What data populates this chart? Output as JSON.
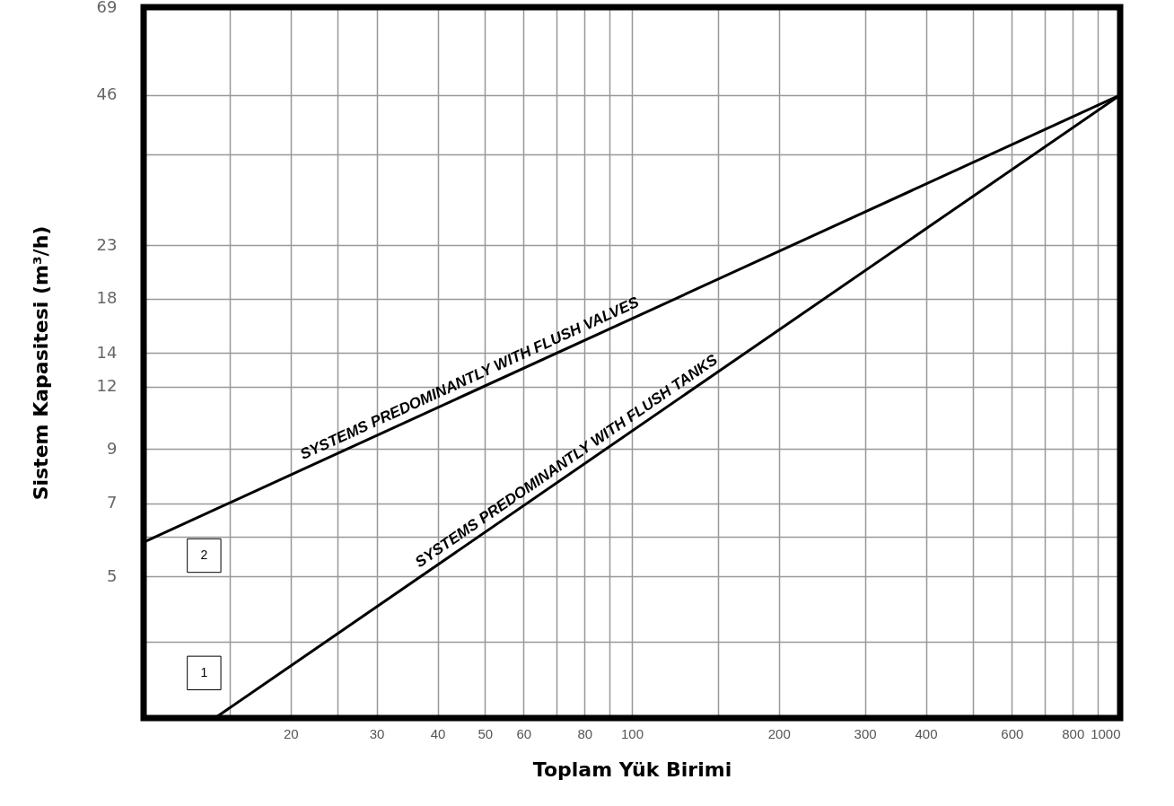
{
  "chart_data": {
    "type": "line",
    "xlabel": "Toplam Yük Birimi",
    "ylabel": "Sistem Kapasitesi (m³/h)",
    "log": "xy",
    "xlim": [
      10,
      1000
    ],
    "ylim": [
      2.6,
      69
    ],
    "xticks": [
      {
        "value": 15,
        "label": null
      },
      20,
      {
        "value": 25,
        "label": null
      },
      30,
      40,
      50,
      60,
      {
        "value": 70,
        "label": null
      },
      80,
      {
        "value": 90,
        "label": null
      },
      100,
      {
        "value": 150,
        "label": null
      },
      200,
      300,
      400,
      {
        "value": 500,
        "label": null
      },
      600,
      {
        "value": 700,
        "label": null
      },
      800,
      {
        "value": 900,
        "label": null
      },
      1000
    ],
    "yticks": [
      {
        "value": 3.7,
        "label": null
      },
      5,
      {
        "value": 6,
        "label": null
      },
      7,
      9,
      12,
      14,
      18,
      23,
      {
        "value": 35,
        "label": null
      },
      46,
      69
    ],
    "grid": true,
    "series": [
      {
        "color": "#000000",
        "x": [
          10,
          1000
        ],
        "values": [
          5.85,
          46
        ]
      },
      {
        "color": "#000000",
        "x": [
          14,
          1000
        ],
        "values": [
          2.6,
          46
        ]
      }
    ],
    "annotations": [
      {
        "text": "SYSTEMS PREDOMINANTLY WITH FLUSH VALVES",
        "x": 47.7,
        "y": 11.8
      },
      {
        "text": "SYSTEMS PREDOMINANTLY WITH FLUSH TANKS",
        "x": 76,
        "y": 8.1
      },
      {
        "text": "2",
        "x": 13.3,
        "y": 5.5
      },
      {
        "text": "1",
        "x": 13.3,
        "y": 3.2
      }
    ]
  }
}
